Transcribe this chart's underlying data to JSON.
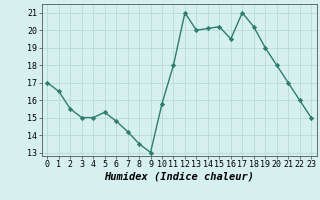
{
  "x": [
    0,
    1,
    2,
    3,
    4,
    5,
    6,
    7,
    8,
    9,
    10,
    11,
    12,
    13,
    14,
    15,
    16,
    17,
    18,
    19,
    20,
    21,
    22,
    23
  ],
  "y": [
    17.0,
    16.5,
    15.5,
    15.0,
    15.0,
    15.3,
    14.8,
    14.2,
    13.5,
    13.0,
    15.8,
    18.0,
    21.0,
    20.0,
    20.1,
    20.2,
    19.5,
    21.0,
    20.2,
    19.0,
    18.0,
    17.0,
    16.0,
    15.0
  ],
  "line_color": "#2e7d6e",
  "marker": "D",
  "marker_size": 2.2,
  "line_width": 1.0,
  "bg_color": "#d6f0ef",
  "grid_color": "#b8dbd8",
  "xlabel": "Humidex (Indice chaleur)",
  "xlabel_fontsize": 7.5,
  "tick_fontsize": 6.0,
  "ylim": [
    12.8,
    21.5
  ],
  "xlim": [
    -0.5,
    23.5
  ],
  "yticks": [
    13,
    14,
    15,
    16,
    17,
    18,
    19,
    20,
    21
  ],
  "xticks": [
    0,
    1,
    2,
    3,
    4,
    5,
    6,
    7,
    8,
    9,
    10,
    11,
    12,
    13,
    14,
    15,
    16,
    17,
    18,
    19,
    20,
    21,
    22,
    23
  ]
}
